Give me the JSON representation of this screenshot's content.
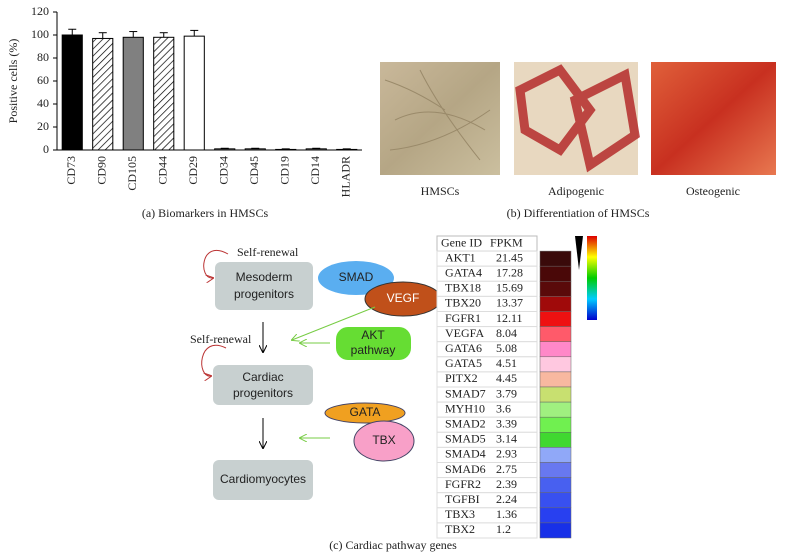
{
  "chart_data": {
    "type": "bar",
    "y_label": "Positive cells (%)",
    "caption": "(a) Biomarkers in HMSCs",
    "categories": [
      "CD73",
      "CD90",
      "CD105",
      "CD44",
      "CD29",
      "CD34",
      "CD45",
      "CD19",
      "CD14",
      "HLADR"
    ],
    "values": [
      100,
      97,
      98,
      98,
      99,
      1,
      1,
      0.5,
      1,
      0.5
    ],
    "errors": [
      5,
      5,
      5,
      4,
      5,
      0.5,
      0.5,
      0.5,
      0.5,
      0.5
    ],
    "colors": [
      "#000000",
      "#ffffff",
      "#808080",
      "#ffffff",
      "#ffffff",
      "#ffffff",
      "#ffffff",
      "#ffffff",
      "#ffffff",
      "#ffffff"
    ],
    "hatch": [
      false,
      true,
      false,
      true,
      false,
      false,
      false,
      false,
      false,
      false
    ],
    "ylim": [
      0,
      120
    ],
    "yticks": [
      0,
      20,
      40,
      60,
      80,
      100,
      120
    ]
  },
  "panel_b": {
    "images": [
      "HMSCs",
      "Adipogenic",
      "Osteogenic"
    ],
    "caption": "(b) Differentiation of HMSCs"
  },
  "panel_c": {
    "diagram": {
      "self_renewal": [
        "Self-renewal",
        "Self-renewal"
      ],
      "stages": [
        [
          "Mesoderm",
          "progenitors"
        ],
        [
          "Cardiac",
          "progenitors"
        ],
        [
          "Cardiomyocytes"
        ]
      ],
      "factors": {
        "smad": "SMAD",
        "vegf": "VEGF",
        "akt": [
          "AKT",
          "pathway"
        ],
        "gata": "GATA",
        "tbx": "TBX"
      }
    },
    "table": {
      "header": [
        "Gene ID",
        "FPKM"
      ],
      "rows": [
        [
          "AKT1",
          21.45
        ],
        [
          "GATA4",
          17.28
        ],
        [
          "TBX18",
          15.69
        ],
        [
          "TBX20",
          13.37
        ],
        [
          "FGFR1",
          12.11
        ],
        [
          "VEGFA",
          8.04
        ],
        [
          "GATA6",
          5.08
        ],
        [
          "GATA5",
          4.51
        ],
        [
          "PITX2",
          4.45
        ],
        [
          "SMAD7",
          3.79
        ],
        [
          "MYH10",
          3.6
        ],
        [
          "SMAD2",
          3.39
        ],
        [
          "SMAD5",
          3.14
        ],
        [
          "SMAD4",
          2.93
        ],
        [
          "SMAD6",
          2.75
        ],
        [
          "FGFR2",
          2.39
        ],
        [
          "TGFBI",
          2.24
        ],
        [
          "TBX3",
          1.36
        ],
        [
          "TBX2",
          1.2
        ]
      ],
      "colors": [
        "#3a0a0a",
        "#4a0808",
        "#5a0a0a",
        "#a00a0a",
        "#ee1111",
        "#ff5a6a",
        "#ff88c8",
        "#ffc8e0",
        "#f8b8a0",
        "#c8e070",
        "#a0f080",
        "#70f050",
        "#40d830",
        "#90a8f8",
        "#6878f0",
        "#4860f0",
        "#3850f0",
        "#2840f0",
        "#1830e8"
      ]
    },
    "caption": "(c) Cardiac pathway genes"
  }
}
